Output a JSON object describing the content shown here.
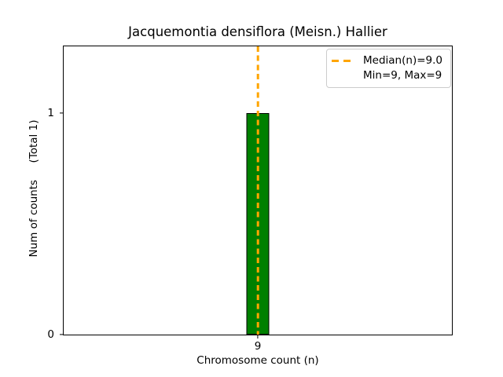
{
  "chart_data": {
    "type": "bar",
    "title": "Jacquemontia densiflora (Meisn.) Hallier",
    "xlabel": "Chromosome count (n)",
    "ylabel": "Num of counts     (Total 1)",
    "categories": [
      "9"
    ],
    "values": [
      1
    ],
    "total_counts": 1,
    "ylim": [
      0,
      1.3
    ],
    "yticks": [
      {
        "value": 0,
        "label": "0"
      },
      {
        "value": 1,
        "label": "1"
      }
    ],
    "xticks": [
      {
        "label": "9"
      }
    ],
    "median_n": 9.0,
    "min_n": 9,
    "max_n": 9,
    "grid": false,
    "legend": {
      "position": "upper right",
      "entries": [
        {
          "label": "Median(n)=9.0",
          "sample": "orange-dashed-line"
        },
        {
          "label": "Min=9, Max=9",
          "sample": "none"
        }
      ]
    },
    "colors": {
      "bar_fill": "#008000",
      "bar_edge": "#000000",
      "median_line": "#FFA500",
      "legend_border": "#cccccc",
      "axes_edge": "#000000",
      "text": "#000000",
      "background": "#ffffff"
    }
  }
}
